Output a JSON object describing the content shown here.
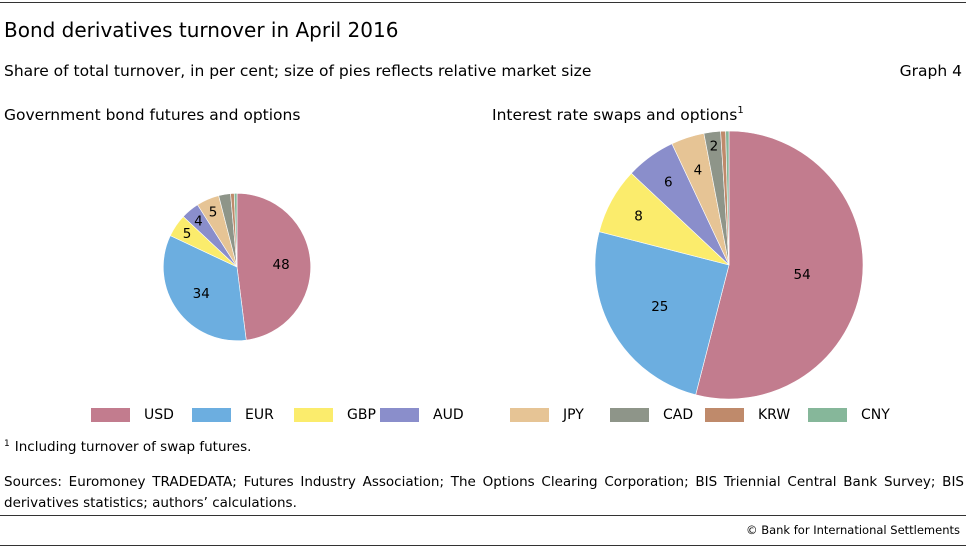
{
  "header": {
    "title": "Bond derivatives turnover in April 2016",
    "subtitle": "Share of total turnover, in per cent; size of pies reflects relative market size",
    "graph_number": "Graph 4"
  },
  "colors": {
    "USD": "#c27c8e",
    "EUR": "#6caee0",
    "GBP": "#fbec6c",
    "AUD": "#8a8ecb",
    "JPY": "#e6c495",
    "CAD": "#8e9589",
    "KRW": "#bf8a6b",
    "CNY": "#86b79a"
  },
  "chart_data": [
    {
      "type": "pie",
      "title": "Government bond futures and options",
      "title_note": "",
      "categories": [
        "USD",
        "EUR",
        "GBP",
        "AUD",
        "JPY",
        "CAD",
        "KRW",
        "CNY"
      ],
      "values": [
        48,
        34,
        5,
        4,
        5,
        2.6,
        0.8,
        0.6
      ],
      "labels": [
        "48",
        "34",
        "5",
        "4",
        "5",
        "",
        "",
        ""
      ],
      "relative_size": 0.55
    },
    {
      "type": "pie",
      "title": "Interest rate swaps and options",
      "title_note": "1",
      "categories": [
        "USD",
        "EUR",
        "GBP",
        "AUD",
        "JPY",
        "CAD",
        "KRW",
        "CNY"
      ],
      "values": [
        54,
        25,
        8,
        6,
        4,
        2,
        0.6,
        0.4
      ],
      "labels": [
        "54",
        "25",
        "8",
        "6",
        "4",
        "2",
        "",
        ""
      ],
      "relative_size": 1
    }
  ],
  "legend": [
    "USD",
    "EUR",
    "GBP",
    "AUD",
    "JPY",
    "CAD",
    "KRW",
    "CNY"
  ],
  "footnote": {
    "mark": "1",
    "text": "Including turnover of swap futures."
  },
  "sources": "Sources: Euromoney TRADEDATA; Futures Industry Association; The Options Clearing Corporation; BIS Triennial Central Bank Survey; BIS derivatives statistics; authors’ calculations.",
  "copyright": "© Bank for International Settlements"
}
